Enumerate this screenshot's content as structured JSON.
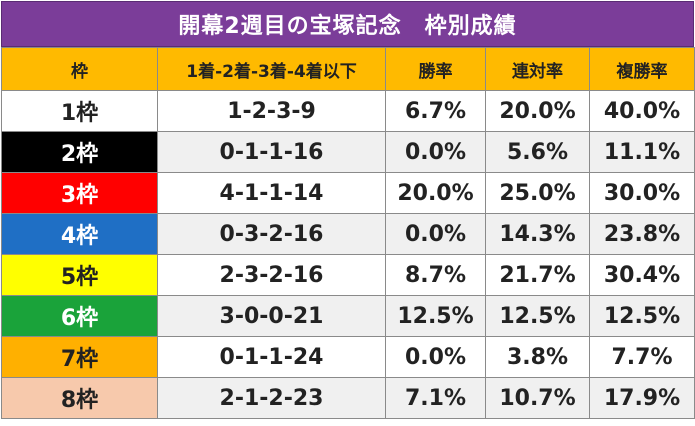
{
  "title": "開幕2週目の宝塚記念　枠別成績",
  "headers": [
    "枠",
    "1着-2着-3着-4着以下",
    "勝率",
    "連対率",
    "複勝率"
  ],
  "rows": [
    {
      "frame": "1枠",
      "record": "1-2-3-9",
      "win": "6.7%",
      "quinella": "20.0%",
      "show": "40.0%",
      "bg": "#ffffff",
      "fg": "#222222"
    },
    {
      "frame": "2枠",
      "record": "0-1-1-16",
      "win": "0.0%",
      "quinella": "5.6%",
      "show": "11.1%",
      "bg": "#000000",
      "fg": "#ffffff"
    },
    {
      "frame": "3枠",
      "record": "4-1-1-14",
      "win": "20.0%",
      "quinella": "25.0%",
      "show": "30.0%",
      "bg": "#ff0000",
      "fg": "#ffffff"
    },
    {
      "frame": "4枠",
      "record": "0-3-2-16",
      "win": "0.0%",
      "quinella": "14.3%",
      "show": "23.8%",
      "bg": "#1f6fc5",
      "fg": "#ffffff"
    },
    {
      "frame": "5枠",
      "record": "2-3-2-16",
      "win": "8.7%",
      "quinella": "21.7%",
      "show": "30.4%",
      "bg": "#ffff00",
      "fg": "#222222"
    },
    {
      "frame": "6枠",
      "record": "3-0-0-21",
      "win": "12.5%",
      "quinella": "12.5%",
      "show": "12.5%",
      "bg": "#1aa33a",
      "fg": "#ffffff"
    },
    {
      "frame": "7枠",
      "record": "0-1-1-24",
      "win": "0.0%",
      "quinella": "3.8%",
      "show": "7.7%",
      "bg": "#ffb000",
      "fg": "#222222"
    },
    {
      "frame": "8枠",
      "record": "2-1-2-23",
      "win": "7.1%",
      "quinella": "10.7%",
      "show": "17.9%",
      "bg": "#f7c9ac",
      "fg": "#222222"
    }
  ]
}
